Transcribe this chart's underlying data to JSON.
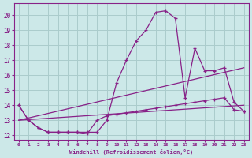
{
  "xlabel": "Windchill (Refroidissement éolien,°C)",
  "bg_color": "#cce8e8",
  "grid_color": "#aacccc",
  "line_color": "#882288",
  "xlim": [
    -0.5,
    23.5
  ],
  "ylim": [
    11.7,
    20.8
  ],
  "yticks": [
    12,
    13,
    14,
    15,
    16,
    17,
    18,
    19,
    20
  ],
  "xticks": [
    0,
    1,
    2,
    3,
    4,
    5,
    6,
    7,
    8,
    9,
    10,
    11,
    12,
    13,
    14,
    15,
    16,
    17,
    18,
    19,
    20,
    21,
    22,
    23
  ],
  "line1_x": [
    0,
    1,
    2,
    3,
    4,
    5,
    6,
    7,
    8,
    9,
    10,
    11,
    12,
    13,
    14,
    15,
    16,
    17,
    18,
    19,
    20,
    21,
    22,
    23
  ],
  "line1_y": [
    14.0,
    13.0,
    12.5,
    12.2,
    12.2,
    12.2,
    12.2,
    12.2,
    12.2,
    13.0,
    15.5,
    17.0,
    18.3,
    19.0,
    20.2,
    20.3,
    19.8,
    14.5,
    17.8,
    16.3,
    16.3,
    16.5,
    14.2,
    13.6
  ],
  "line2_x": [
    0,
    23
  ],
  "line2_y": [
    13.0,
    16.5
  ],
  "line3_x": [
    0,
    23
  ],
  "line3_y": [
    13.0,
    14.0
  ],
  "line4_x": [
    0,
    1,
    2,
    3,
    4,
    5,
    6,
    7,
    8,
    9,
    10,
    11,
    12,
    13,
    14,
    15,
    16,
    17,
    18,
    19,
    20,
    21,
    22,
    23
  ],
  "line4_y": [
    14.0,
    13.0,
    12.5,
    12.2,
    12.2,
    12.2,
    12.2,
    12.1,
    13.0,
    13.3,
    13.4,
    13.5,
    13.6,
    13.7,
    13.8,
    13.9,
    14.0,
    14.1,
    14.2,
    14.3,
    14.4,
    14.5,
    13.7,
    13.6
  ]
}
